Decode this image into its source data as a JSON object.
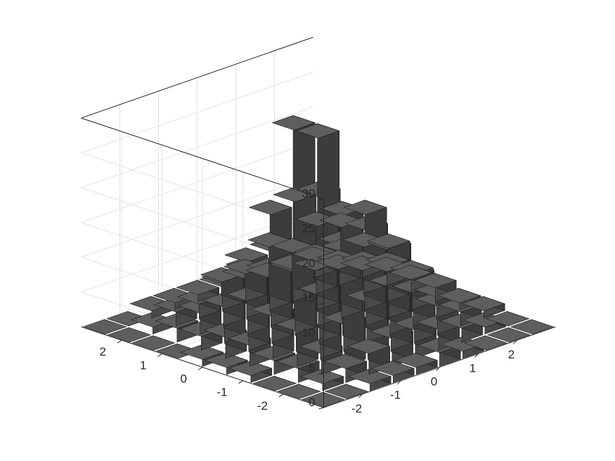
{
  "chart_data": {
    "type": "bar3d",
    "z_ticks": [
      "0",
      "5",
      "10",
      "15",
      "20",
      "25",
      "30"
    ],
    "x_ticks": [
      "-2",
      "-1",
      "0",
      "1",
      "2"
    ],
    "y_ticks": [
      "-2",
      "-1",
      "0",
      "1",
      "2"
    ],
    "zlim": [
      0,
      30
    ],
    "xlim": [
      -3,
      3
    ],
    "ylim": [
      -3,
      3
    ],
    "grid": true,
    "bar_color": "#4d4d4d",
    "x_centers": [
      -2.7,
      -2.1,
      -1.5,
      -0.9,
      -0.3,
      0.3,
      0.9,
      1.5,
      2.1,
      2.7
    ],
    "y_centers": [
      -2.7,
      -2.1,
      -1.5,
      -0.9,
      -0.3,
      0.3,
      0.9,
      1.5,
      2.1,
      2.7
    ],
    "counts": [
      [
        0,
        0,
        1,
        1,
        1,
        2,
        1,
        0,
        0,
        0
      ],
      [
        0,
        1,
        2,
        3,
        4,
        4,
        3,
        2,
        1,
        0
      ],
      [
        0,
        2,
        3,
        6,
        8,
        9,
        7,
        4,
        2,
        1
      ],
      [
        1,
        2,
        5,
        9,
        14,
        16,
        12,
        7,
        3,
        1
      ],
      [
        1,
        3,
        6,
        12,
        21,
        17,
        16,
        10,
        5,
        2
      ],
      [
        1,
        3,
        7,
        13,
        19,
        27,
        13,
        9,
        5,
        2
      ],
      [
        0,
        2,
        5,
        9,
        16,
        27,
        12,
        8,
        4,
        2
      ],
      [
        0,
        2,
        3,
        6,
        8,
        9,
        7,
        5,
        3,
        1
      ],
      [
        0,
        1,
        2,
        2,
        4,
        4,
        3,
        2,
        1,
        0
      ],
      [
        0,
        0,
        1,
        1,
        1,
        1,
        1,
        0,
        0,
        0
      ]
    ]
  }
}
